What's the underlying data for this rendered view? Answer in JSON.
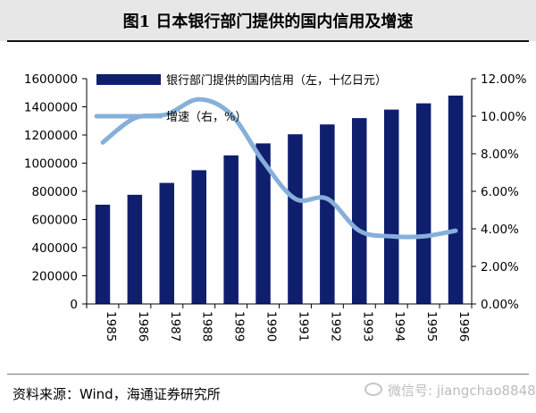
{
  "header": {
    "title": "图1 日本银行部门提供的国内信用及增速"
  },
  "source": "资料来源：Wind，海通证券研究所",
  "watermark": "微信号: jiangchao8848",
  "colors": {
    "bar": "#0f1f6e",
    "line": "#86b0da",
    "header_bg": "#e7e7e7"
  },
  "chart_data": {
    "type": "bar",
    "categories": [
      "1985",
      "1986",
      "1987",
      "1988",
      "1989",
      "1990",
      "1991",
      "1992",
      "1993",
      "1994",
      "1995",
      "1996"
    ],
    "series": [
      {
        "name": "银行部门提供的国内信用（左，十亿日元）",
        "axis": "left",
        "kind": "bar",
        "values": [
          705000,
          775000,
          860000,
          950000,
          1055000,
          1140000,
          1205000,
          1275000,
          1320000,
          1380000,
          1425000,
          1480000
        ]
      },
      {
        "name": "增速（右，%）",
        "axis": "right",
        "kind": "line",
        "values": [
          8.6,
          9.9,
          10.1,
          10.9,
          10.1,
          7.6,
          5.6,
          5.6,
          3.9,
          3.6,
          3.6,
          3.9
        ]
      }
    ],
    "y_left": {
      "min": 0,
      "max": 1600000,
      "ticks": [
        "0",
        "200000",
        "400000",
        "600000",
        "800000",
        "1000000",
        "1200000",
        "1400000",
        "1600000"
      ]
    },
    "y_right": {
      "min": 0,
      "max": 12,
      "ticks": [
        "0.00%",
        "2.00%",
        "4.00%",
        "6.00%",
        "8.00%",
        "10.00%",
        "12.00%"
      ]
    },
    "legend_position": "top-left",
    "grid": false
  }
}
